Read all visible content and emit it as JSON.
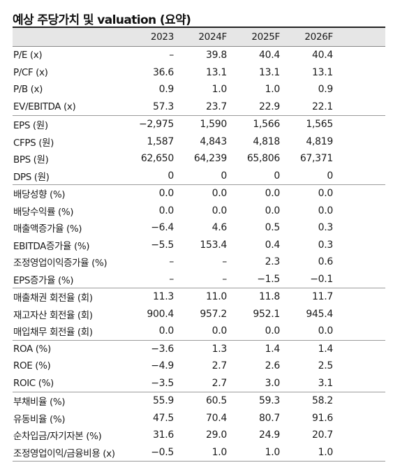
{
  "title": "예상 주당가치 및 valuation (요약)",
  "columns": [
    "2023",
    "2024F",
    "2025F",
    "2026F"
  ],
  "rows": [
    {
      "label": "P/E (x)",
      "values": [
        "–",
        "39.8",
        "40.4",
        "40.4"
      ]
    },
    {
      "label": "P/CF (x)",
      "values": [
        "36.6",
        "13.1",
        "13.1",
        "13.1"
      ]
    },
    {
      "label": "P/B (x)",
      "values": [
        "0.9",
        "1.0",
        "1.0",
        "0.9"
      ]
    },
    {
      "label": "EV/EBITDA (x)",
      "values": [
        "57.3",
        "23.7",
        "22.9",
        "22.1"
      ]
    },
    {
      "label": "EPS (원)",
      "values": [
        "−2,975",
        "1,590",
        "1,566",
        "1,565"
      ]
    },
    {
      "label": "CFPS (원)",
      "values": [
        "1,587",
        "4,843",
        "4,818",
        "4,819"
      ]
    },
    {
      "label": "BPS (원)",
      "values": [
        "62,650",
        "64,239",
        "65,806",
        "67,371"
      ]
    },
    {
      "label": "DPS (원)",
      "values": [
        "0",
        "0",
        "0",
        "0"
      ]
    },
    {
      "label": "배당성향 (%)",
      "values": [
        "0.0",
        "0.0",
        "0.0",
        "0.0"
      ]
    },
    {
      "label": "배당수익률 (%)",
      "values": [
        "0.0",
        "0.0",
        "0.0",
        "0.0"
      ]
    },
    {
      "label": "매출액증가율 (%)",
      "values": [
        "−6.4",
        "4.6",
        "0.5",
        "0.3"
      ]
    },
    {
      "label": "EBITDA증가율 (%)",
      "values": [
        "−5.5",
        "153.4",
        "0.4",
        "0.3"
      ]
    },
    {
      "label": "조정영업이익증가율 (%)",
      "values": [
        "–",
        "–",
        "2.3",
        "0.6"
      ]
    },
    {
      "label": "EPS증가율 (%)",
      "values": [
        "–",
        "–",
        "−1.5",
        "−0.1"
      ]
    },
    {
      "label": "매출채권 회전율 (회)",
      "values": [
        "11.3",
        "11.0",
        "11.8",
        "11.7"
      ]
    },
    {
      "label": "재고자산 회전율 (회)",
      "values": [
        "900.4",
        "957.2",
        "952.1",
        "945.4"
      ]
    },
    {
      "label": "매입채무 회전율 (회)",
      "values": [
        "0.0",
        "0.0",
        "0.0",
        "0.0"
      ]
    },
    {
      "label": "ROA (%)",
      "values": [
        "−3.6",
        "1.3",
        "1.4",
        "1.4"
      ]
    },
    {
      "label": "ROE (%)",
      "values": [
        "−4.9",
        "2.7",
        "2.6",
        "2.5"
      ]
    },
    {
      "label": "ROIC (%)",
      "values": [
        "−3.5",
        "2.7",
        "3.0",
        "3.1"
      ]
    },
    {
      "label": "부채비율 (%)",
      "values": [
        "55.9",
        "60.5",
        "59.3",
        "58.2"
      ]
    },
    {
      "label": "유동비율 (%)",
      "values": [
        "47.5",
        "70.4",
        "80.7",
        "91.6"
      ]
    },
    {
      "label": "순차입금/자기자본 (%)",
      "values": [
        "31.6",
        "29.0",
        "24.9",
        "20.7"
      ]
    },
    {
      "label": "조정영업이익/금융비용 (x)",
      "values": [
        "−0.5",
        "1.0",
        "1.0",
        "1.0"
      ]
    }
  ]
}
